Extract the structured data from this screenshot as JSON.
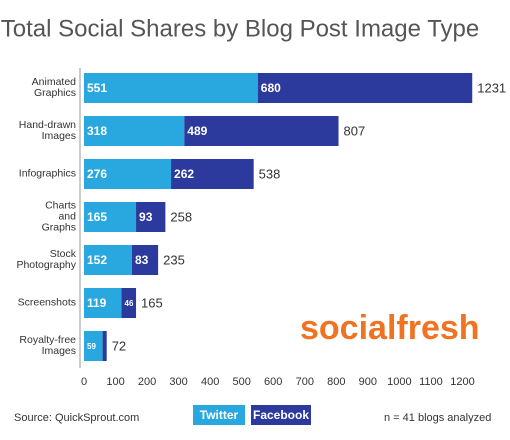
{
  "chart_data": {
    "type": "bar",
    "orientation": "horizontal",
    "stacked": true,
    "title": "Total Social Shares by Blog Post Image Type",
    "categories": [
      "Animated\nGraphics",
      "Hand-drawn\nImages",
      "Infographics",
      "Charts\nand\nGraphs",
      "Stock\nPhotography",
      "Screenshots",
      "Royalty-free\nImages"
    ],
    "series": [
      {
        "name": "Twitter",
        "color": "#29a8e0",
        "values": [
          551,
          318,
          276,
          165,
          152,
          119,
          59
        ]
      },
      {
        "name": "Facebook",
        "color": "#2b3a9c",
        "values": [
          680,
          489,
          262,
          93,
          83,
          46,
          13
        ]
      }
    ],
    "totals": [
      1231,
      807,
      538,
      258,
      235,
      165,
      72
    ],
    "xlim": [
      0,
      1300
    ],
    "xticks": [
      0,
      100,
      200,
      300,
      400,
      500,
      600,
      700,
      800,
      900,
      1000,
      1100,
      1200
    ],
    "grid": false,
    "source": "Source: QuickSprout.com",
    "note": "n = 41 blogs analyzed",
    "brand": "socialfresh"
  }
}
